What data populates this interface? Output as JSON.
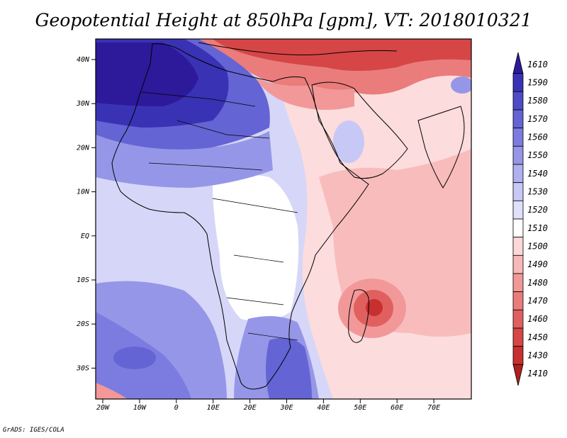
{
  "title": "Geopotential Height at 850hPa [gpm], VT: 2018010321",
  "credit": "GrADS: IGES/COLA",
  "x_axis_labels": [
    "20W",
    "10W",
    "0",
    "10E",
    "20E",
    "30E",
    "40E",
    "50E",
    "60E",
    "70E"
  ],
  "y_axis_labels": [
    "40N",
    "30N",
    "20N",
    "10N",
    "EQ",
    "10S",
    "20S",
    "30S"
  ],
  "colorbar": {
    "levels": [
      "1610",
      "1590",
      "1580",
      "1570",
      "1560",
      "1550",
      "1540",
      "1530",
      "1520",
      "1510",
      "1500",
      "1490",
      "1480",
      "1470",
      "1460",
      "1450",
      "1430",
      "1410"
    ],
    "colors": [
      "#2c1a9a",
      "#3a32b4",
      "#4d4cc6",
      "#6464d4",
      "#7c7ce0",
      "#9696e8",
      "#b0b0f0",
      "#c8c8f6",
      "#e0e0fa",
      "#ffffff",
      "#fcd8d8",
      "#f8b8b8",
      "#f29898",
      "#ea7c7c",
      "#e06060",
      "#d64646",
      "#c83030",
      "#b01e1e"
    ]
  },
  "map_colors": {
    "ocean_deep_blue": "#2c1a9a",
    "light_blue": "#c8c8f6",
    "neutral": "#ffffff",
    "light_red": "#f8b8b8",
    "deep_red": "#b01e1e"
  }
}
